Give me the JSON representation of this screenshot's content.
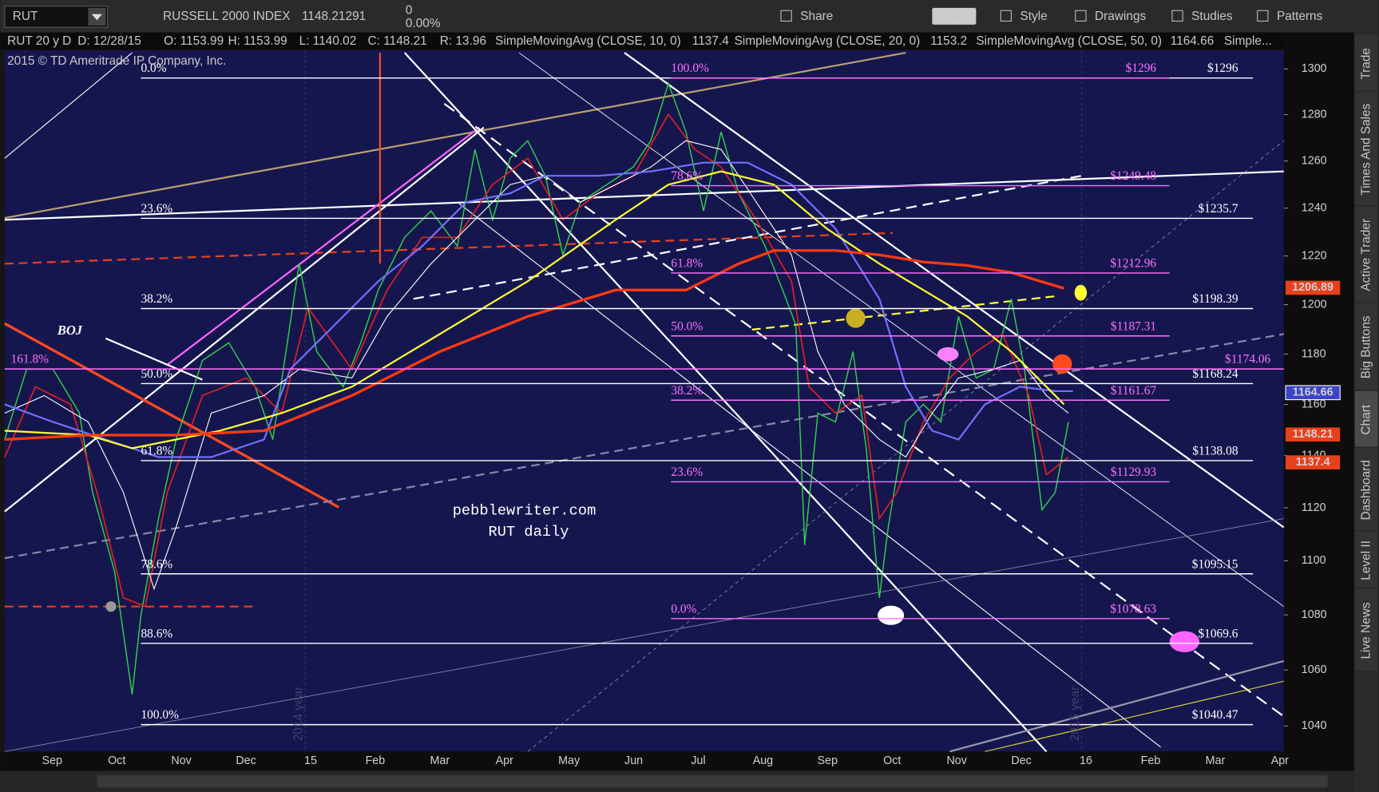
{
  "toolbar": {
    "symbol": "RUT",
    "name": "RUSSELL 2000 INDEX",
    "last": "1148.21291",
    "change": "0",
    "change_pct": "0.00%",
    "period": "D",
    "buttons": [
      "Share",
      "Style",
      "Drawings",
      "Studies",
      "Patterns"
    ]
  },
  "info": [
    "RUT 20 y D",
    "D: 12/28/15",
    "O: 1153.99",
    "H: 1153.99",
    "L: 1140.02",
    "C: 1148.21",
    "R: 13.96"
  ],
  "studies": [
    {
      "name": "SimpleMovingAvg (CLOSE, 10, 0)",
      "value": 1137.4,
      "color": "#ff3030"
    },
    {
      "name": "SimpleMovingAvg (CLOSE, 20, 0)",
      "value": 1153.2,
      "color": "#ffffff"
    },
    {
      "name": "SimpleMovingAvg (CLOSE, 50, 0)",
      "value": 1164.66,
      "color": "#8c8cff"
    },
    {
      "name": "Simple...",
      "color": "#ffff40"
    }
  ],
  "copyright": "2015 © TD Ameritrade IP Company, Inc.",
  "annotations": [
    "BOJ",
    "pebblewriter.com",
    "RUT daily"
  ],
  "chart": {
    "log": true,
    "ylim": [
      1031,
      1315
    ],
    "yticks": [
      1040,
      1060,
      1080,
      1100,
      1120,
      1140,
      1160,
      1180,
      1200,
      1220,
      1240,
      1260,
      1280,
      1300
    ],
    "x_labels": [
      "Sep",
      "Oct",
      "Nov",
      "Dec",
      "15",
      "Feb",
      "Mar",
      "Apr",
      "May",
      "Jun",
      "Jul",
      "Aug",
      "Sep",
      "Oct",
      "Nov",
      "Dec",
      "16",
      "Feb",
      "Mar",
      "Apr"
    ],
    "white_fib": [
      {
        "pct": "0.0%",
        "value": 1296,
        "label": "$1296"
      },
      {
        "pct": "23.6%",
        "value": 1235.7,
        "label": "$1235.7"
      },
      {
        "pct": "38.2%",
        "value": 1198.39,
        "label": "$1198.39"
      },
      {
        "pct": "50.0%",
        "value": 1168.24,
        "label": "$1168.24"
      },
      {
        "pct": "61.8%",
        "value": 1138.08,
        "label": "$1138.08"
      },
      {
        "pct": "78.6%",
        "value": 1095.15,
        "label": "$1095.15"
      },
      {
        "pct": "88.6%",
        "value": 1069.6,
        "label": "$1069.6"
      },
      {
        "pct": "100.0%",
        "value": 1040.47,
        "label": "$1040.47"
      }
    ],
    "pink_fib": [
      {
        "pct": "100.0%",
        "value": 1296,
        "label": "$1296"
      },
      {
        "pct": "78.6%",
        "value": 1249.48,
        "label": "$1249.48"
      },
      {
        "pct": "61.8%",
        "value": 1212.96,
        "label": "$1212.96"
      },
      {
        "pct": "50.0%",
        "value": 1187.31,
        "label": "$1187.31"
      },
      {
        "pct": "38.2%",
        "value": 1161.67,
        "label": "$1161.67"
      },
      {
        "pct": "23.6%",
        "value": 1129.93,
        "label": "$1129.93"
      },
      {
        "pct": "0.0%",
        "value": 1078.63,
        "label": "$1078.63"
      }
    ],
    "extension": {
      "pct": "161.8%",
      "value": 1174.06,
      "label": "$1174.06"
    },
    "badges": [
      {
        "value": 1206.89,
        "color": "#e8401c"
      },
      {
        "value": 1164.66,
        "color": "#3c44c8"
      },
      {
        "value": 1148.21,
        "color": "#e8401c"
      },
      {
        "value": 1137.4,
        "color": "#e8401c"
      }
    ],
    "watermarks": [
      "2014 year",
      "2015 year"
    ]
  },
  "sidebar": [
    "Trade",
    "Times And Sales",
    "Active Trader",
    "Big Buttons",
    "Chart",
    "Dashboard",
    "Level II",
    "Live News"
  ]
}
